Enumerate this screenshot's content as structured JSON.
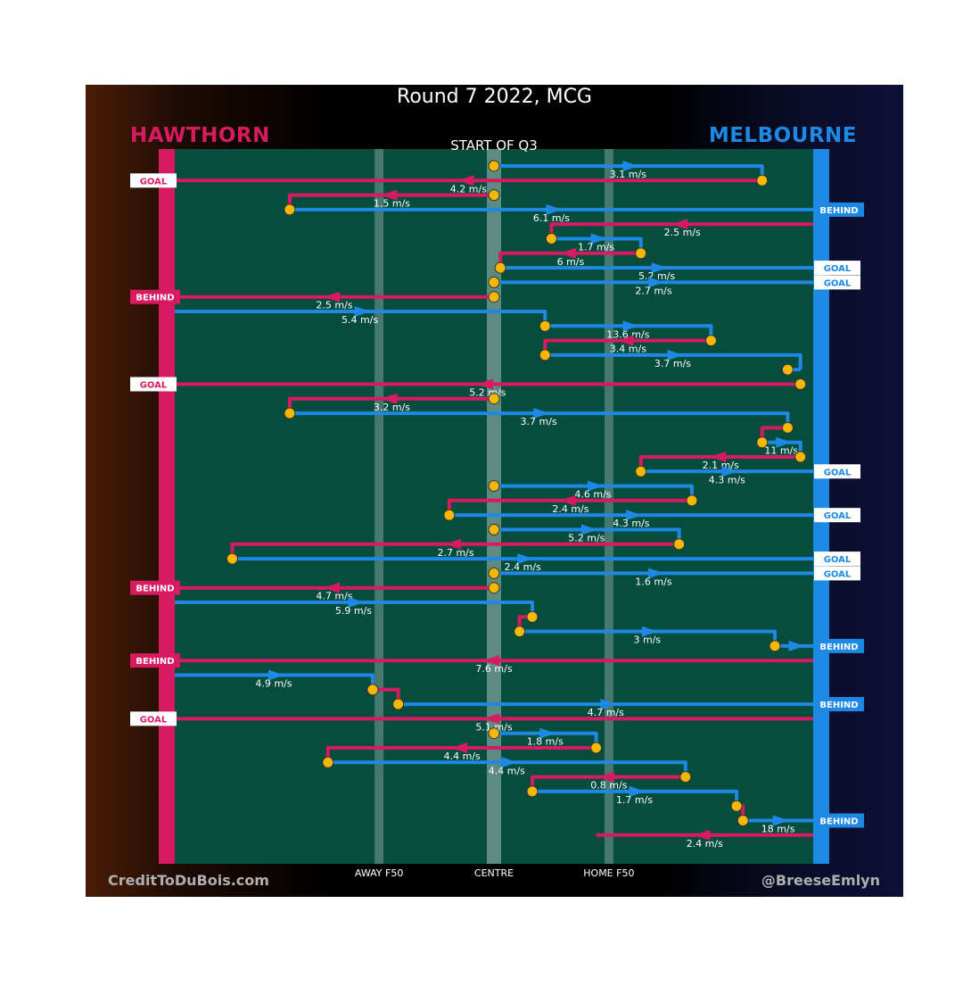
{
  "header": {
    "title": "Round 7 2022, MCG",
    "team_left": "HAWTHORN",
    "team_right": "MELBOURNE",
    "quarter_label": "START OF Q3"
  },
  "footer": {
    "credit_left": "CreditToDuBois.com",
    "credit_right": "@BreeseEmlyn"
  },
  "colors": {
    "hawthorn": "#d81b60",
    "melbourne": "#1e88e5",
    "ground": "#074d3e",
    "marker": "#f5b800"
  },
  "chart_data": {
    "type": "line",
    "title": "Round 7 2022, MCG",
    "subtitle": "START OF Q3",
    "x_tick_labels": [
      "AWAY F50",
      "CENTRE",
      "HOME F50"
    ],
    "chains": [
      {
        "row": 1,
        "team": "Melbourne",
        "speed": "3.1 m/s",
        "start": 0.5,
        "path": [
          [
            0.5,
            1
          ],
          [
            0.92,
            1
          ],
          [
            0.92,
            2
          ]
        ]
      },
      {
        "row": 2,
        "team": "Hawthorn",
        "speed": "4.2 m/s",
        "start": 0.92,
        "path": [
          [
            0.92,
            2
          ],
          [
            0,
            2
          ]
        ],
        "result": "GOAL"
      },
      {
        "row": 3,
        "team": "Hawthorn",
        "speed": "1.5 m/s",
        "start": 0.5,
        "path": [
          [
            0.5,
            3
          ],
          [
            0.18,
            3
          ],
          [
            0.18,
            4
          ]
        ]
      },
      {
        "row": 4,
        "team": "Melbourne",
        "speed": "6.1 m/s",
        "start": 0.18,
        "path": [
          [
            0.18,
            4
          ],
          [
            1,
            4
          ]
        ],
        "result": "BEHIND"
      },
      {
        "row": 5,
        "team": "Hawthorn",
        "speed": "2.5 m/s",
        "start": 1,
        "path": [
          [
            1,
            5
          ],
          [
            0.59,
            5
          ],
          [
            0.59,
            6
          ]
        ]
      },
      {
        "row": 6,
        "team": "Melbourne",
        "speed": "1.7 m/s",
        "start": 0.59,
        "path": [
          [
            0.59,
            6
          ],
          [
            0.73,
            6
          ],
          [
            0.73,
            7
          ]
        ]
      },
      {
        "row": 7,
        "team": "Hawthorn",
        "speed": "6 m/s",
        "start": 0.73,
        "path": [
          [
            0.73,
            7
          ],
          [
            0.51,
            7
          ],
          [
            0.51,
            8
          ]
        ]
      },
      {
        "row": 8,
        "team": "Melbourne",
        "speed": "5.2 m/s",
        "start": 0.51,
        "path": [
          [
            0.51,
            8
          ],
          [
            1,
            8
          ]
        ],
        "result": "GOAL"
      },
      {
        "row": 9,
        "team": "Melbourne",
        "speed": "2.7 m/s",
        "start": 0.5,
        "path": [
          [
            0.5,
            9
          ],
          [
            1,
            9
          ]
        ],
        "result": "GOAL"
      },
      {
        "row": 10,
        "team": "Hawthorn",
        "speed": "2.5 m/s",
        "start": 0.5,
        "path": [
          [
            0.5,
            10
          ],
          [
            0,
            10
          ]
        ],
        "result": "BEHIND"
      },
      {
        "row": 11,
        "team": "Melbourne",
        "speed": "5.4 m/s",
        "start": 0,
        "path": [
          [
            0,
            11
          ],
          [
            0.58,
            11
          ],
          [
            0.58,
            12
          ]
        ]
      },
      {
        "row": 12,
        "team": "Melbourne",
        "speed": "13.6 m/s",
        "start": 0.58,
        "path": [
          [
            0.58,
            12
          ],
          [
            0.84,
            12
          ],
          [
            0.84,
            13
          ]
        ]
      },
      {
        "row": 13,
        "team": "Hawthorn",
        "speed": "3.4 m/s",
        "start": 0.84,
        "path": [
          [
            0.84,
            13
          ],
          [
            0.58,
            13
          ],
          [
            0.58,
            14
          ]
        ]
      },
      {
        "row": 14,
        "team": "Melbourne",
        "speed": "3.7 m/s",
        "start": 0.58,
        "path": [
          [
            0.58,
            14
          ],
          [
            0.98,
            14
          ],
          [
            0.98,
            15
          ]
        ]
      },
      {
        "row": 15,
        "team": "Melbourne",
        "speed": "",
        "start": 0.96,
        "path": [
          [
            0.96,
            15
          ],
          [
            0.98,
            15
          ]
        ]
      },
      {
        "row": 16,
        "team": "Hawthorn",
        "speed": "5.2 m/s",
        "start": 0.98,
        "path": [
          [
            0.98,
            16
          ],
          [
            0,
            16
          ]
        ],
        "result": "GOAL"
      },
      {
        "row": 17,
        "team": "Hawthorn",
        "speed": "3.2 m/s",
        "start": 0.5,
        "path": [
          [
            0.5,
            17
          ],
          [
            0.18,
            17
          ],
          [
            0.18,
            18
          ]
        ]
      },
      {
        "row": 18,
        "team": "Melbourne",
        "speed": "3.7 m/s",
        "start": 0.18,
        "path": [
          [
            0.18,
            18
          ],
          [
            0.96,
            18
          ],
          [
            0.96,
            19
          ]
        ]
      },
      {
        "row": 19,
        "team": "Hawthorn",
        "speed": "",
        "start": 0.96,
        "path": [
          [
            0.96,
            19
          ],
          [
            0.92,
            19
          ],
          [
            0.92,
            20
          ]
        ]
      },
      {
        "row": 20,
        "team": "Melbourne",
        "speed": "11 m/s",
        "start": 0.92,
        "path": [
          [
            0.92,
            20
          ],
          [
            0.98,
            20
          ],
          [
            0.98,
            21
          ]
        ]
      },
      {
        "row": 21,
        "team": "Hawthorn",
        "speed": "2.1 m/s",
        "start": 0.98,
        "path": [
          [
            0.98,
            21
          ],
          [
            0.73,
            21
          ],
          [
            0.73,
            22
          ]
        ]
      },
      {
        "row": 22,
        "team": "Melbourne",
        "speed": "4.3 m/s",
        "start": 0.73,
        "path": [
          [
            0.73,
            22
          ],
          [
            1,
            22
          ]
        ],
        "result": "GOAL"
      },
      {
        "row": 23,
        "team": "Melbourne",
        "speed": "4.6 m/s",
        "start": 0.5,
        "path": [
          [
            0.5,
            23
          ],
          [
            0.81,
            23
          ],
          [
            0.81,
            24
          ]
        ]
      },
      {
        "row": 24,
        "team": "Hawthorn",
        "speed": "2.4 m/s",
        "start": 0.81,
        "path": [
          [
            0.81,
            24
          ],
          [
            0.43,
            24
          ],
          [
            0.43,
            25
          ]
        ]
      },
      {
        "row": 25,
        "team": "Melbourne",
        "speed": "4.3 m/s",
        "start": 0.43,
        "path": [
          [
            0.43,
            25
          ],
          [
            1,
            25
          ]
        ],
        "result": "GOAL"
      },
      {
        "row": 26,
        "team": "Melbourne",
        "speed": "5.2 m/s",
        "start": 0.5,
        "path": [
          [
            0.5,
            26
          ],
          [
            0.79,
            26
          ],
          [
            0.79,
            27
          ]
        ]
      },
      {
        "row": 27,
        "team": "Hawthorn",
        "speed": "2.7 m/s",
        "start": 0.79,
        "path": [
          [
            0.79,
            27
          ],
          [
            0.09,
            27
          ],
          [
            0.09,
            28
          ]
        ]
      },
      {
        "row": 28,
        "team": "Melbourne",
        "speed": "2.4 m/s",
        "start": 0.09,
        "path": [
          [
            0.09,
            28
          ],
          [
            1,
            28
          ]
        ],
        "result": "GOAL"
      },
      {
        "row": 29,
        "team": "Melbourne",
        "speed": "1.6 m/s",
        "start": 0.5,
        "path": [
          [
            0.5,
            29
          ],
          [
            1,
            29
          ]
        ],
        "result": "GOAL"
      },
      {
        "row": 30,
        "team": "Hawthorn",
        "speed": "4.7 m/s",
        "start": 0.5,
        "path": [
          [
            0.5,
            30
          ],
          [
            0,
            30
          ]
        ],
        "result": "BEHIND"
      },
      {
        "row": 31,
        "team": "Melbourne",
        "speed": "5.9 m/s",
        "start": 0,
        "path": [
          [
            0,
            31
          ],
          [
            0.56,
            31
          ],
          [
            0.56,
            32
          ]
        ]
      },
      {
        "row": 32,
        "team": "Hawthorn",
        "speed": "",
        "start": 0.56,
        "path": [
          [
            0.56,
            32
          ],
          [
            0.54,
            32
          ],
          [
            0.54,
            33
          ]
        ]
      },
      {
        "row": 33,
        "team": "Melbourne",
        "speed": "3 m/s",
        "start": 0.54,
        "path": [
          [
            0.54,
            33
          ],
          [
            0.94,
            33
          ],
          [
            0.94,
            34
          ]
        ]
      },
      {
        "row": 34,
        "team": "Melbourne",
        "speed": "",
        "start": 0.94,
        "path": [
          [
            0.94,
            34
          ],
          [
            1,
            34
          ]
        ],
        "result": "BEHIND"
      },
      {
        "row": 35,
        "team": "Hawthorn",
        "speed": "7.6 m/s",
        "start": 1,
        "path": [
          [
            1,
            35
          ],
          [
            0,
            35
          ]
        ],
        "result": "BEHIND"
      },
      {
        "row": 36,
        "team": "Melbourne",
        "speed": "4.9 m/s",
        "start": 0,
        "path": [
          [
            0,
            36
          ],
          [
            0.31,
            36
          ],
          [
            0.31,
            37
          ]
        ]
      },
      {
        "row": 37,
        "team": "Hawthorn",
        "speed": "",
        "start": 0.31,
        "path": [
          [
            0.31,
            37
          ],
          [
            0.35,
            37
          ],
          [
            0.35,
            38
          ]
        ]
      },
      {
        "row": 38,
        "team": "Melbourne",
        "speed": "4.7 m/s",
        "start": 0.35,
        "path": [
          [
            0.35,
            38
          ],
          [
            1,
            38
          ]
        ],
        "result": "BEHIND"
      },
      {
        "row": 39,
        "team": "Hawthorn",
        "speed": "5.1 m/s",
        "start": 1,
        "path": [
          [
            1,
            39
          ],
          [
            0,
            39
          ]
        ],
        "result": "GOAL"
      },
      {
        "row": 40,
        "team": "Melbourne",
        "speed": "1.8 m/s",
        "start": 0.5,
        "path": [
          [
            0.5,
            40
          ],
          [
            0.66,
            40
          ],
          [
            0.66,
            41
          ]
        ]
      },
      {
        "row": 41,
        "team": "Hawthorn",
        "speed": "4.4 m/s",
        "start": 0.66,
        "path": [
          [
            0.66,
            41
          ],
          [
            0.24,
            41
          ],
          [
            0.24,
            42
          ]
        ]
      },
      {
        "row": 42,
        "team": "Melbourne",
        "speed": "4.4 m/s",
        "start": 0.24,
        "path": [
          [
            0.24,
            42
          ],
          [
            0.8,
            42
          ],
          [
            0.8,
            43
          ]
        ]
      },
      {
        "row": 43,
        "team": "Hawthorn",
        "speed": "0.8 m/s",
        "start": 0.8,
        "path": [
          [
            0.8,
            43
          ],
          [
            0.56,
            43
          ],
          [
            0.56,
            44
          ]
        ]
      },
      {
        "row": 44,
        "team": "Melbourne",
        "speed": "1.7 m/s",
        "start": 0.56,
        "path": [
          [
            0.56,
            44
          ],
          [
            0.88,
            44
          ],
          [
            0.88,
            45
          ]
        ]
      },
      {
        "row": 45,
        "team": "Hawthorn",
        "speed": "",
        "start": 0.88,
        "path": [
          [
            0.88,
            45
          ],
          [
            0.89,
            45
          ],
          [
            0.89,
            46
          ]
        ]
      },
      {
        "row": 46,
        "team": "Melbourne",
        "speed": "18 m/s",
        "start": 0.89,
        "path": [
          [
            0.89,
            46
          ],
          [
            1,
            46
          ]
        ],
        "result": "BEHIND"
      },
      {
        "row": 47,
        "team": "Hawthorn",
        "speed": "2.4 m/s",
        "start": 1,
        "path": [
          [
            1,
            47
          ],
          [
            0.66,
            47
          ]
        ]
      }
    ]
  }
}
